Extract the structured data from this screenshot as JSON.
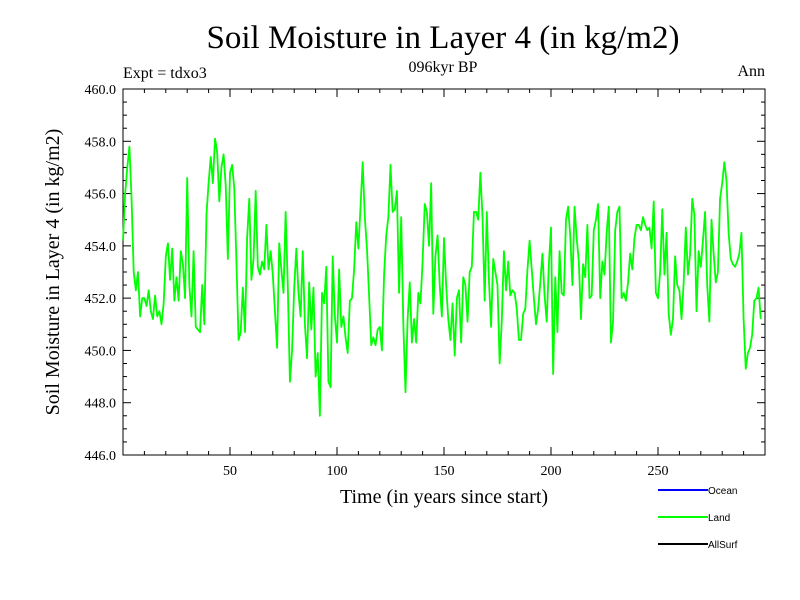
{
  "header": {
    "title": "Soil Moisture in Layer 4 (in kg/m2)",
    "subtitle": "096kyr BP",
    "expt_label": "Expt = tdxo3",
    "period_label": "Ann"
  },
  "legend": {
    "items": [
      {
        "label": "Ocean",
        "color": "#0000ff"
      },
      {
        "label": "Land",
        "color": "#00ff00"
      },
      {
        "label": "AllSurf",
        "color": "#000000"
      }
    ]
  },
  "chart_data": {
    "type": "line",
    "title": "Soil Moisture in Layer 4 (in kg/m2)",
    "subtitle": "096kyr BP",
    "xlabel": "Time (in years since start)",
    "ylabel": "Soil Moisture in Layer 4 (in kg/m2)",
    "xlim": [
      0,
      300
    ],
    "ylim": [
      446,
      460
    ],
    "x_ticks": [
      50,
      100,
      150,
      200,
      250
    ],
    "y_ticks": [
      "446.0",
      "448.0",
      "450.0",
      "452.0",
      "454.0",
      "456.0",
      "458.0",
      "460.0"
    ],
    "grid": false,
    "legend_position": "bottom-right",
    "series": [
      {
        "name": "Land",
        "color": "#00ff00",
        "x_start": 0,
        "x_step": 1,
        "values": [
          454.2,
          456.0,
          457.0,
          457.8,
          455.8,
          453.0,
          452.3,
          453.0,
          451.3,
          452.0,
          452.0,
          451.7,
          452.3,
          451.5,
          451.2,
          452.1,
          451.3,
          451.5,
          451.0,
          451.8,
          453.6,
          454.1,
          452.7,
          453.9,
          451.9,
          452.8,
          451.9,
          453.8,
          453.3,
          452.0,
          456.6,
          452.5,
          451.3,
          453.8,
          450.9,
          450.8,
          450.7,
          452.5,
          451.0,
          455.2,
          456.4,
          457.4,
          456.4,
          458.1,
          457.6,
          455.7,
          457.0,
          457.5,
          456.3,
          453.5,
          456.8,
          457.1,
          456.2,
          453.4,
          450.4,
          450.7,
          452.4,
          450.7,
          454.3,
          455.8,
          452.7,
          453.5,
          456.1,
          453.2,
          452.9,
          453.4,
          453.1,
          454.8,
          453.1,
          453.8,
          452.9,
          451.5,
          450.1,
          454.1,
          453.1,
          452.2,
          455.3,
          452.5,
          448.8,
          450.0,
          452.4,
          453.9,
          452.2,
          451.3,
          453.8,
          451.0,
          449.7,
          452.6,
          450.8,
          452.4,
          449.0,
          449.9,
          447.5,
          452.2,
          451.8,
          453.2,
          448.8,
          448.6,
          453.6,
          451.3,
          450.3,
          453.1,
          450.9,
          451.3,
          450.5,
          449.9,
          451.9,
          452.0,
          453.1,
          454.9,
          453.9,
          455.5,
          457.2,
          455.1,
          453.9,
          452.1,
          450.2,
          450.5,
          450.2,
          450.8,
          450.9,
          450.0,
          452.9,
          454.4,
          455.1,
          457.1,
          455.3,
          455.4,
          456.1,
          452.2,
          455.1,
          451.0,
          448.4,
          451.2,
          452.6,
          450.3,
          451.2,
          450.3,
          452.2,
          451.8,
          453.4,
          455.6,
          455.3,
          454.0,
          456.4,
          451.4,
          453.6,
          454.4,
          452.5,
          451.3,
          454.3,
          452.5,
          451.2,
          450.4,
          451.8,
          449.8,
          452.0,
          452.3,
          450.3,
          452.8,
          452.5,
          451.1,
          453.0,
          453.2,
          455.3,
          455.3,
          455.0,
          456.8,
          455.1,
          451.9,
          455.3,
          452.7,
          450.9,
          453.5,
          453.0,
          452.5,
          449.5,
          451.1,
          453.8,
          452.3,
          453.4,
          452.1,
          452.3,
          452.2,
          451.6,
          450.4,
          450.4,
          451.4,
          451.6,
          453.1,
          454.2,
          453.1,
          452.0,
          451.0,
          451.6,
          452.6,
          453.7,
          452.1,
          451.1,
          453.3,
          454.7,
          449.1,
          452.8,
          450.7,
          453.8,
          452.2,
          452.1,
          455.0,
          455.5,
          454.4,
          452.5,
          455.5,
          454.3,
          453.4,
          451.2,
          453.3,
          452.8,
          454.8,
          452.0,
          452.1,
          454.6,
          455.0,
          455.6,
          452.0,
          453.4,
          452.9,
          454.5,
          455.5,
          450.3,
          451.1,
          454.6,
          455.3,
          455.5,
          452.0,
          452.2,
          451.9,
          452.6,
          453.7,
          453.1,
          454.3,
          454.8,
          454.8,
          454.6,
          455.1,
          454.8,
          454.6,
          454.7,
          453.9,
          455.7,
          452.2,
          452.0,
          453.0,
          455.4,
          452.9,
          454.5,
          451.4,
          450.6,
          451.2,
          453.6,
          452.5,
          452.3,
          451.2,
          452.6,
          454.7,
          452.9,
          453.7,
          455.8,
          455.2,
          451.5,
          453.8,
          453.2,
          454.2,
          455.3,
          452.5,
          451.1,
          455.0,
          453.7,
          452.6,
          453.0,
          455.8,
          456.4,
          457.2,
          456.5,
          454.5,
          453.5,
          453.3,
          453.2,
          453.4,
          453.7,
          454.5,
          451.2,
          449.3,
          449.9,
          450.1,
          450.6,
          451.9,
          452.0,
          452.4,
          451.2
        ]
      }
    ]
  }
}
